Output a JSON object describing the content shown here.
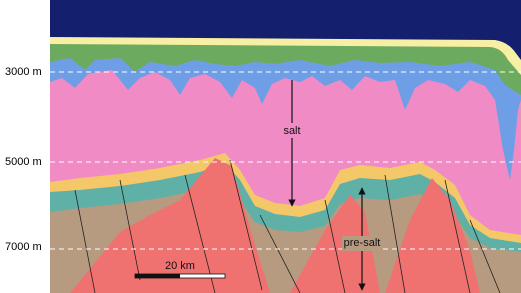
{
  "depth_labels": [
    "3000 m",
    "5000 m",
    "7000 m"
  ],
  "layer_labels": {
    "salt": "salt",
    "pre_salt": "pre-salt"
  },
  "scale_bar": "20 km"
}
